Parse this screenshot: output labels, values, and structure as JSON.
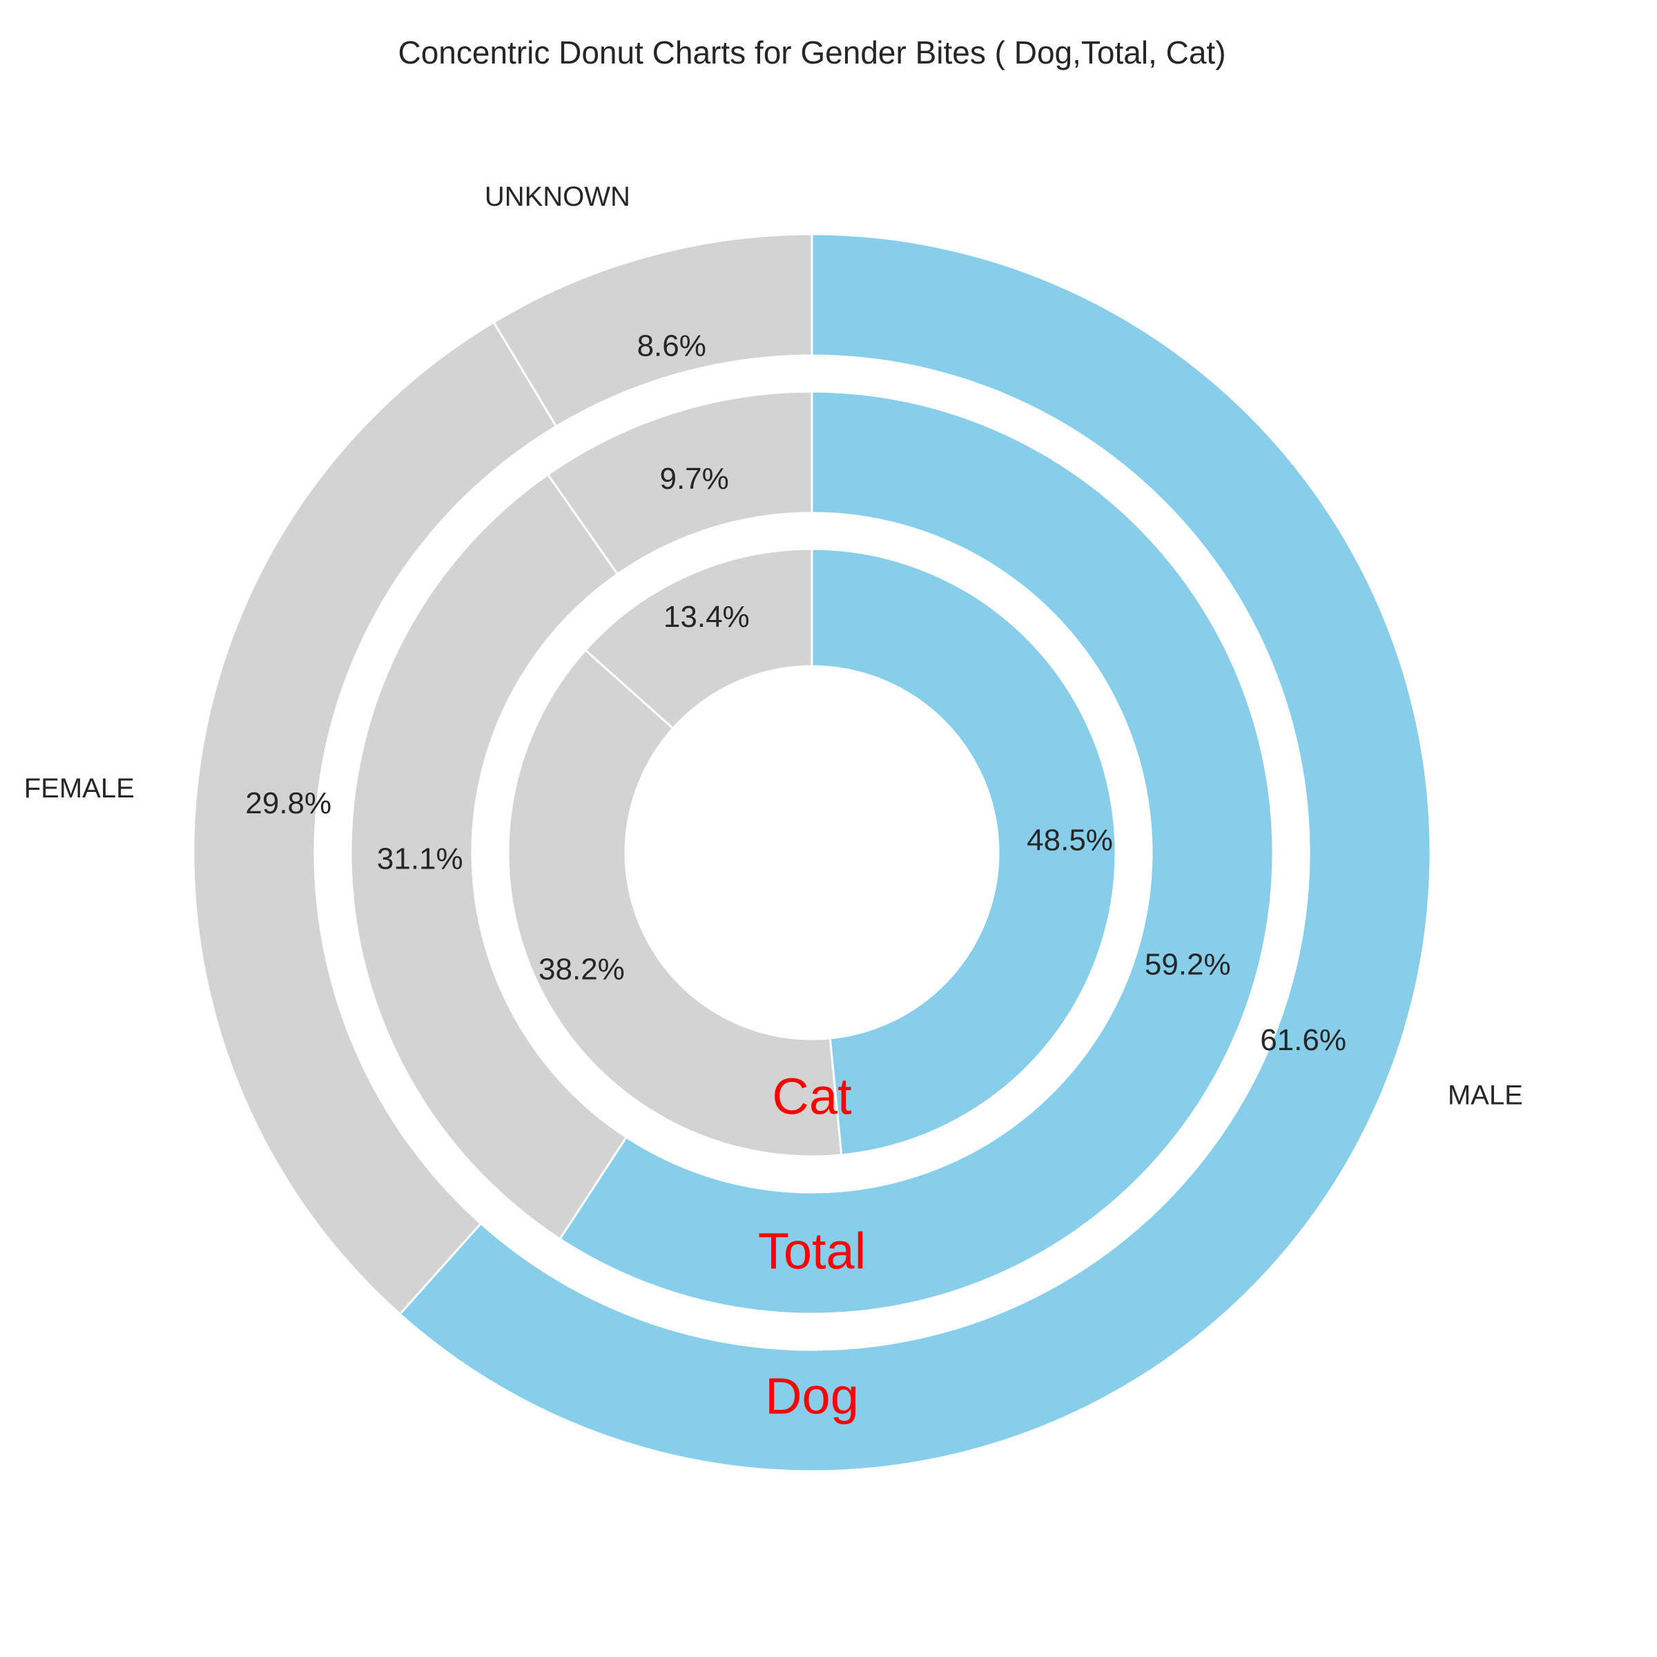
{
  "chart_data": {
    "type": "pie",
    "title": "Concentric Donut Charts for Gender Bites ( Dog,Total, Cat)",
    "categories": [
      "MALE",
      "FEMALE",
      "UNKNOWN"
    ],
    "colors": {
      "MALE": "#87ceeb",
      "FEMALE": "#d3d3d3",
      "UNKNOWN": "#d3d3d3"
    },
    "label_color": "#ff0000",
    "series": [
      {
        "name": "Dog",
        "values": [
          61.6,
          29.8,
          8.6
        ],
        "labels": [
          "61.6%",
          "29.8%",
          "8.6%"
        ]
      },
      {
        "name": "Total",
        "values": [
          59.2,
          31.1,
          9.7
        ],
        "labels": [
          "59.2%",
          "31.1%",
          "9.7%"
        ]
      },
      {
        "name": "Cat",
        "values": [
          48.5,
          38.2,
          13.4
        ],
        "labels": [
          "48.5%",
          "38.2%",
          "13.4%"
        ]
      }
    ]
  }
}
